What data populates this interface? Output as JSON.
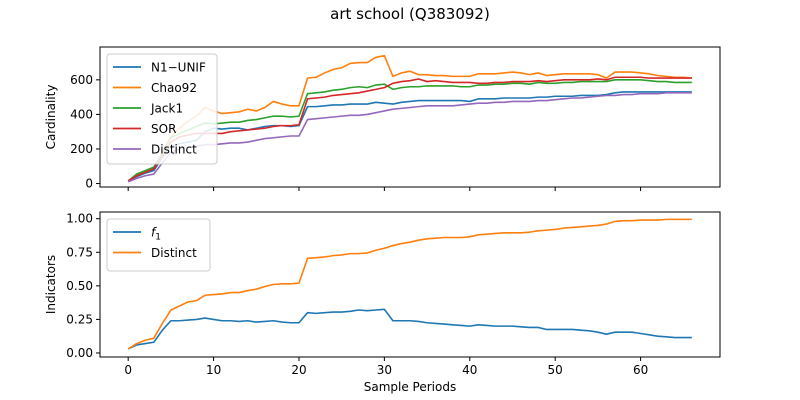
{
  "figure_title": "art school (Q383092)",
  "chart_data": [
    {
      "type": "line",
      "title": "",
      "xlabel": "",
      "ylabel": "Cardinality",
      "xlim": [
        -3.3,
        69.3
      ],
      "ylim": [
        -20,
        790
      ],
      "xticks": [
        0,
        10,
        20,
        30,
        40,
        50,
        60
      ],
      "yticks": [
        0,
        200,
        400,
        600
      ],
      "legend": "top-left",
      "series": [
        {
          "name": "N1−UNIF",
          "color": "#1f77b4",
          "y": [
            15,
            40,
            60,
            75,
            150,
            215,
            230,
            240,
            250,
            300,
            320,
            315,
            320,
            320,
            310,
            320,
            330,
            335,
            335,
            330,
            335,
            445,
            445,
            450,
            455,
            455,
            460,
            460,
            460,
            470,
            465,
            460,
            470,
            475,
            480,
            480,
            480,
            480,
            480,
            480,
            475,
            490,
            490,
            490,
            495,
            495,
            495,
            495,
            500,
            500,
            505,
            505,
            505,
            510,
            510,
            510,
            515,
            525,
            530,
            530,
            530,
            530,
            530,
            530,
            530,
            530,
            530
          ]
        },
        {
          "name": "Chao92",
          "color": "#ff7f0e",
          "y": [
            15,
            50,
            70,
            90,
            180,
            270,
            320,
            360,
            390,
            440,
            420,
            405,
            410,
            415,
            430,
            420,
            440,
            475,
            460,
            450,
            450,
            610,
            615,
            640,
            660,
            670,
            695,
            700,
            700,
            730,
            740,
            620,
            640,
            650,
            630,
            630,
            625,
            625,
            620,
            620,
            620,
            635,
            635,
            635,
            640,
            645,
            640,
            630,
            640,
            625,
            630,
            635,
            635,
            635,
            635,
            630,
            610,
            645,
            645,
            645,
            640,
            635,
            625,
            620,
            615,
            615,
            610
          ]
        },
        {
          "name": "Jack1",
          "color": "#2ca02c",
          "y": [
            15,
            55,
            75,
            95,
            175,
            265,
            290,
            310,
            330,
            350,
            345,
            350,
            355,
            355,
            365,
            370,
            380,
            390,
            390,
            385,
            390,
            520,
            525,
            530,
            540,
            545,
            555,
            560,
            555,
            570,
            575,
            545,
            555,
            560,
            560,
            565,
            565,
            565,
            565,
            560,
            560,
            570,
            570,
            575,
            575,
            580,
            580,
            575,
            585,
            580,
            580,
            585,
            585,
            590,
            590,
            590,
            590,
            600,
            600,
            600,
            600,
            595,
            590,
            590,
            585,
            585,
            585
          ]
        },
        {
          "name": "SOR",
          "color": "#d62728",
          "y": [
            15,
            45,
            65,
            85,
            160,
            240,
            270,
            280,
            290,
            290,
            290,
            290,
            300,
            305,
            310,
            315,
            320,
            330,
            335,
            335,
            340,
            490,
            495,
            500,
            510,
            515,
            520,
            525,
            535,
            545,
            555,
            580,
            590,
            595,
            605,
            590,
            595,
            590,
            585,
            585,
            585,
            580,
            580,
            585,
            585,
            590,
            590,
            590,
            595,
            590,
            595,
            600,
            600,
            600,
            600,
            605,
            600,
            615,
            615,
            615,
            615,
            610,
            610,
            610,
            610,
            610,
            610
          ]
        },
        {
          "name": "Distinct",
          "color": "#9467bd",
          "y": [
            10,
            30,
            45,
            55,
            120,
            180,
            200,
            210,
            215,
            225,
            225,
            230,
            235,
            235,
            240,
            250,
            260,
            265,
            270,
            275,
            275,
            370,
            375,
            380,
            385,
            390,
            395,
            395,
            400,
            410,
            420,
            430,
            435,
            440,
            445,
            450,
            450,
            450,
            450,
            455,
            460,
            465,
            465,
            470,
            470,
            475,
            475,
            475,
            480,
            480,
            485,
            490,
            495,
            495,
            500,
            505,
            510,
            510,
            515,
            515,
            520,
            520,
            520,
            525,
            525,
            525,
            525
          ]
        }
      ]
    },
    {
      "type": "line",
      "title": "",
      "xlabel": "Sample Periods",
      "ylabel": "Indicators",
      "xlim": [
        -3.3,
        69.3
      ],
      "ylim": [
        -0.03,
        1.05
      ],
      "xticks": [
        0,
        10,
        20,
        30,
        40,
        50,
        60
      ],
      "xtick_labels": [
        "0",
        "10",
        "20",
        "30",
        "40",
        "50",
        "60"
      ],
      "yticks": [
        0.0,
        0.25,
        0.5,
        0.75,
        1.0
      ],
      "ytick_labels": [
        "0.00",
        "0.25",
        "0.50",
        "0.75",
        "1.00"
      ],
      "legend": "top-left",
      "series": [
        {
          "name": "f",
          "name_sub": "1",
          "color": "#1f77b4",
          "y": [
            0.03,
            0.06,
            0.07,
            0.08,
            0.17,
            0.24,
            0.24,
            0.245,
            0.25,
            0.26,
            0.25,
            0.24,
            0.24,
            0.235,
            0.24,
            0.23,
            0.235,
            0.24,
            0.23,
            0.225,
            0.225,
            0.3,
            0.295,
            0.3,
            0.305,
            0.305,
            0.31,
            0.32,
            0.315,
            0.32,
            0.325,
            0.24,
            0.24,
            0.24,
            0.235,
            0.225,
            0.22,
            0.215,
            0.21,
            0.205,
            0.2,
            0.21,
            0.205,
            0.2,
            0.2,
            0.2,
            0.195,
            0.19,
            0.19,
            0.175,
            0.175,
            0.175,
            0.175,
            0.17,
            0.165,
            0.155,
            0.14,
            0.155,
            0.155,
            0.155,
            0.145,
            0.135,
            0.125,
            0.12,
            0.115,
            0.115,
            0.115
          ]
        },
        {
          "name": "Distinct",
          "color": "#ff7f0e",
          "y": [
            0.03,
            0.07,
            0.095,
            0.11,
            0.22,
            0.32,
            0.35,
            0.38,
            0.39,
            0.43,
            0.435,
            0.44,
            0.45,
            0.45,
            0.465,
            0.475,
            0.495,
            0.51,
            0.515,
            0.515,
            0.52,
            0.705,
            0.71,
            0.715,
            0.725,
            0.73,
            0.74,
            0.74,
            0.745,
            0.765,
            0.78,
            0.8,
            0.815,
            0.825,
            0.84,
            0.85,
            0.855,
            0.86,
            0.86,
            0.86,
            0.865,
            0.88,
            0.885,
            0.89,
            0.895,
            0.895,
            0.895,
            0.9,
            0.91,
            0.915,
            0.92,
            0.93,
            0.935,
            0.94,
            0.945,
            0.95,
            0.96,
            0.98,
            0.985,
            0.985,
            0.99,
            0.99,
            0.99,
            0.995,
            0.995,
            0.995,
            0.995
          ]
        }
      ]
    }
  ]
}
